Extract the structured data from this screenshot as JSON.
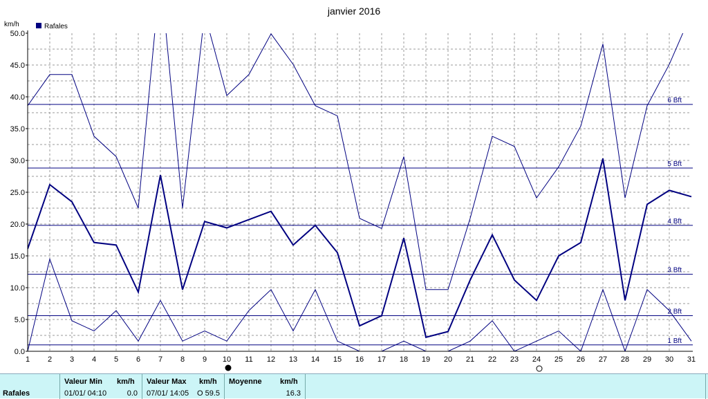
{
  "chart_data": {
    "type": "line",
    "title": "janvier 2016",
    "ylabel": "km/h",
    "legend": {
      "label": "Rafales",
      "placement": "top-left",
      "color": "#000080"
    },
    "x": [
      1,
      2,
      3,
      4,
      5,
      6,
      7,
      8,
      9,
      10,
      11,
      12,
      13,
      14,
      15,
      16,
      17,
      18,
      19,
      20,
      21,
      22,
      23,
      24,
      25,
      26,
      27,
      28,
      29,
      30,
      31
    ],
    "xlim": [
      1,
      31
    ],
    "ylim": [
      0,
      50
    ],
    "yticks": [
      "0.0",
      "5.0",
      "10.0",
      "15.0",
      "20.0",
      "25.0",
      "30.0",
      "35.0",
      "40.0",
      "45.0",
      "50.0"
    ],
    "grid": true,
    "series": [
      {
        "name": "Rafales",
        "role": "mean",
        "color": "#000080",
        "values": [
          16.1,
          26.2,
          23.5,
          17.1,
          16.7,
          9.3,
          27.7,
          9.7,
          20.4,
          19.4,
          20.7,
          22.0,
          16.7,
          19.8,
          15.5,
          4.0,
          5.6,
          17.8,
          2.2,
          3.1,
          11.2,
          18.3,
          11.2,
          8.0,
          15.0,
          17.1,
          30.3,
          8.0,
          23.1,
          25.3,
          24.3
        ]
      },
      {
        "role": "max",
        "color": "#000080",
        "values": [
          38.6,
          43.5,
          43.5,
          33.8,
          30.6,
          22.5,
          59.5,
          22.5,
          53.1,
          40.2,
          43.5,
          49.9,
          45.1,
          38.6,
          37.0,
          20.9,
          19.3,
          30.6,
          9.7,
          9.7,
          20.9,
          33.8,
          32.2,
          24.1,
          29.0,
          35.4,
          48.3,
          24.1,
          38.6,
          45.1,
          53.1
        ]
      },
      {
        "role": "min",
        "color": "#000080",
        "values": [
          0.0,
          14.5,
          4.8,
          3.2,
          6.4,
          1.6,
          8.0,
          1.6,
          3.2,
          1.6,
          6.4,
          9.7,
          3.2,
          9.7,
          1.6,
          0.0,
          0.0,
          1.6,
          0.0,
          0.0,
          1.6,
          4.8,
          0.0,
          1.6,
          3.2,
          0.0,
          9.7,
          0.0,
          9.7,
          6.4,
          1.6
        ]
      }
    ],
    "reference_lines": [
      {
        "label": "1 Bft",
        "value": 1.0
      },
      {
        "label": "2 Bft",
        "value": 5.6
      },
      {
        "label": "3 Bft",
        "value": 12.1
      },
      {
        "label": "4 Bft",
        "value": 19.8
      },
      {
        "label": "5 Bft",
        "value": 28.8
      },
      {
        "label": "6 Bft",
        "value": 38.8
      }
    ],
    "moon_markers": [
      {
        "day": 10,
        "phase": "new-moon"
      },
      {
        "day": 24,
        "phase": "full-moon"
      }
    ]
  },
  "footer": {
    "row_label": "Rafales",
    "min_header": "Valeur Min",
    "min_unit": "km/h",
    "min_date": "01/01/ 04:10",
    "min_value": "0.0",
    "max_header": "Valeur Max",
    "max_unit": "km/h",
    "max_date": "07/01/ 14:05",
    "max_marker": "O",
    "max_value": "59.5",
    "avg_header": "Moyenne",
    "avg_unit": "km/h",
    "avg_value": "16.3"
  },
  "colors": {
    "line": "#000080",
    "grid": "#9a9a9a",
    "footer_bg": "#ccf5f7"
  }
}
